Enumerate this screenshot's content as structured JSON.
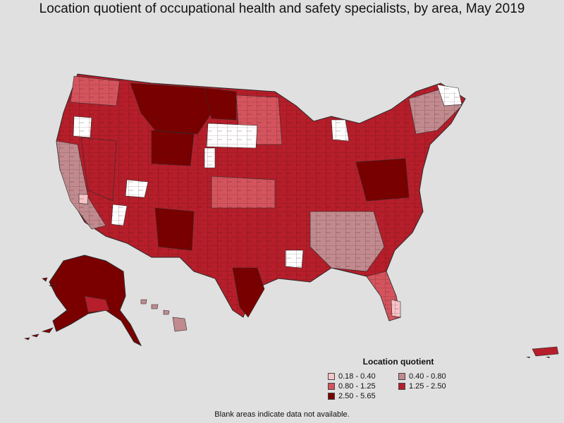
{
  "title": "Location quotient of occupational health and safety specialists, by area, May 2019",
  "legend": {
    "title": "Location quotient",
    "items": [
      {
        "label": "0.18 - 0.40",
        "color": "#f7c4c8"
      },
      {
        "label": "0.40 - 0.80",
        "color": "#c08a8e"
      },
      {
        "label": "0.80 - 1.25",
        "color": "#d4545e"
      },
      {
        "label": "1.25 - 2.50",
        "color": "#b51e2a"
      },
      {
        "label": "2.50 - 5.65",
        "color": "#7a0000"
      }
    ]
  },
  "note": "Blank areas indicate data not available.",
  "colors": {
    "background": "#e0e0e0",
    "border": "#2b2b2b",
    "no_data": "#ffffff"
  }
}
